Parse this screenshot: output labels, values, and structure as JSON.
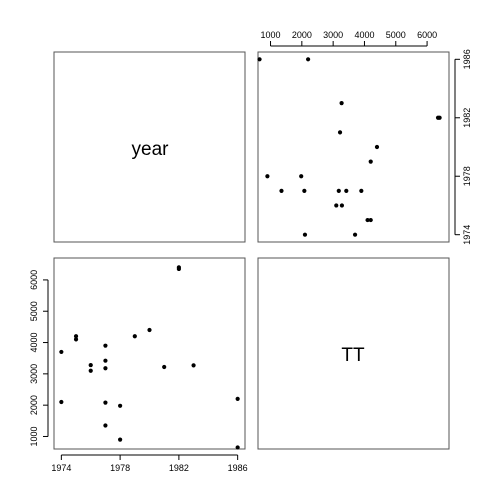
{
  "chart_data": {
    "type": "scatter",
    "variables": [
      "year",
      "TT"
    ],
    "year_axis": {
      "range": [
        1973.5,
        1986.5
      ],
      "ticks": [
        1974,
        1978,
        1982,
        1986
      ]
    },
    "tt_axis": {
      "range": [
        600,
        6700
      ],
      "ticks": [
        1000,
        2000,
        3000,
        4000,
        5000,
        6000
      ]
    },
    "tt_top_axis": {
      "range": [
        600,
        6700
      ],
      "ticks": [
        1000,
        2000,
        3000,
        4000,
        5000,
        6000
      ]
    },
    "points": [
      {
        "year": 1974,
        "tt": 2100
      },
      {
        "year": 1974,
        "tt": 3700
      },
      {
        "year": 1975,
        "tt": 4100
      },
      {
        "year": 1975,
        "tt": 4200
      },
      {
        "year": 1976,
        "tt": 3100
      },
      {
        "year": 1976,
        "tt": 3280
      },
      {
        "year": 1977,
        "tt": 1350
      },
      {
        "year": 1977,
        "tt": 2080
      },
      {
        "year": 1977,
        "tt": 3180
      },
      {
        "year": 1977,
        "tt": 3420
      },
      {
        "year": 1977,
        "tt": 3900
      },
      {
        "year": 1978,
        "tt": 900
      },
      {
        "year": 1978,
        "tt": 1980
      },
      {
        "year": 1979,
        "tt": 4200
      },
      {
        "year": 1980,
        "tt": 4400
      },
      {
        "year": 1981,
        "tt": 3220
      },
      {
        "year": 1982,
        "tt": 6350
      },
      {
        "year": 1982,
        "tt": 6400
      },
      {
        "year": 1983,
        "tt": 3270
      },
      {
        "year": 1986,
        "tt": 650
      },
      {
        "year": 1986,
        "tt": 2200
      }
    ]
  }
}
